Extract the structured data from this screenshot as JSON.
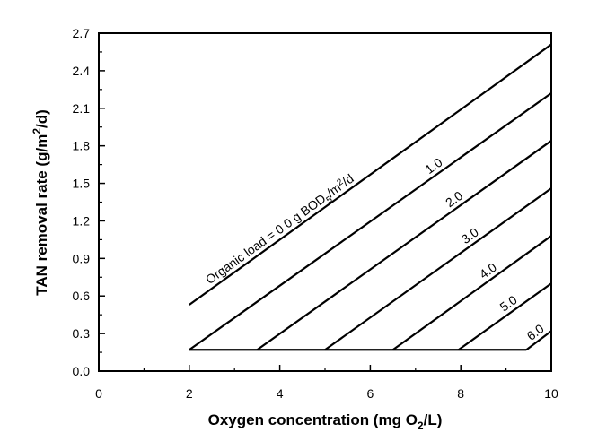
{
  "chart_data": {
    "type": "line",
    "title": "",
    "xlabel": "Oxygen concentration (mg O",
    "xlabel_sub": "2",
    "xlabel_end": "/L)",
    "ylabel": "TAN removal rate (g/m",
    "ylabel_sup": "2",
    "ylabel_end": "/d)",
    "xlim": [
      0,
      10
    ],
    "ylim": [
      0,
      2.7
    ],
    "x_ticks": [
      0,
      2,
      4,
      6,
      8,
      10
    ],
    "x_tick_labels": [
      "0",
      "2",
      "4",
      "6",
      "8",
      "10"
    ],
    "y_ticks": [
      0,
      0.3,
      0.6,
      0.9,
      1.2,
      1.5,
      1.8,
      2.1,
      2.4,
      2.7
    ],
    "y_tick_labels": [
      "0.0",
      "0.3",
      "0.6",
      "0.9",
      "1.2",
      "1.5",
      "1.8",
      "2.1",
      "2.4",
      "2.7"
    ],
    "grid": false,
    "legend": "none",
    "series": [
      {
        "name": "Organic load = 0.0 g BOD5/m2/d",
        "label_parts": [
          "Organic load = 0.0 g BOD",
          "5",
          "/m",
          "2",
          "/d"
        ],
        "points": [
          [
            2.0,
            0.53
          ],
          [
            10.0,
            2.61
          ]
        ]
      },
      {
        "name": "1.0",
        "label_parts": [
          "1.0"
        ],
        "points": [
          [
            2.0,
            0.17
          ],
          [
            10.0,
            2.22
          ]
        ]
      },
      {
        "name": "2.0",
        "label_parts": [
          "2.0"
        ],
        "points": [
          [
            3.5,
            0.17
          ],
          [
            10.0,
            1.84
          ]
        ]
      },
      {
        "name": "3.0",
        "label_parts": [
          "3.0"
        ],
        "points": [
          [
            5.0,
            0.17
          ],
          [
            10.0,
            1.46
          ]
        ]
      },
      {
        "name": "4.0",
        "label_parts": [
          "4.0"
        ],
        "points": [
          [
            6.5,
            0.17
          ],
          [
            10.0,
            1.08
          ]
        ]
      },
      {
        "name": "5.0",
        "label_parts": [
          "5.0"
        ],
        "points": [
          [
            7.95,
            0.17
          ],
          [
            10.0,
            0.7
          ]
        ]
      },
      {
        "name": "6.0",
        "label_parts": [
          "6.0"
        ],
        "points": [
          [
            9.45,
            0.17
          ],
          [
            10.0,
            0.32
          ]
        ]
      }
    ],
    "floor_line": {
      "points": [
        [
          2.0,
          0.17
        ],
        [
          9.45,
          0.17
        ]
      ]
    }
  }
}
